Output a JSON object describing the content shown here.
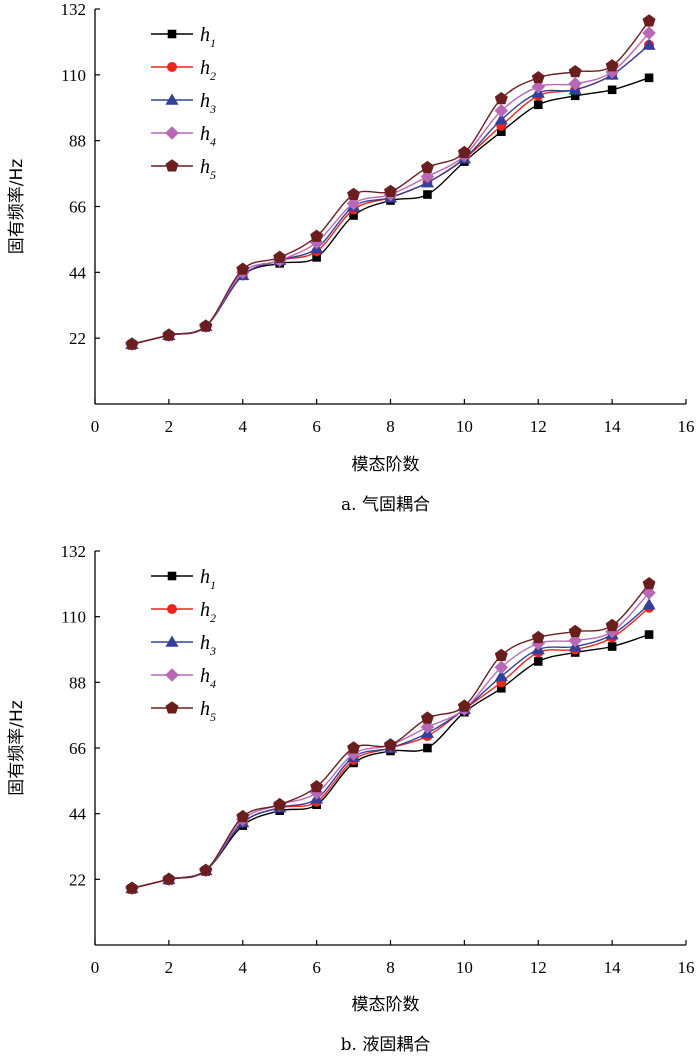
{
  "chart_data": [
    {
      "type": "line",
      "title": "a. 气固耦合",
      "xlabel": "模态阶数",
      "ylabel": "固有频率/Hz",
      "xlim": [
        0,
        16
      ],
      "ylim": [
        0,
        132
      ],
      "xticks": [
        0,
        2,
        4,
        6,
        8,
        10,
        12,
        14,
        16
      ],
      "xtick_labels": [
        "0",
        "2",
        "4",
        "6",
        "8",
        "10",
        "12",
        "14",
        "16"
      ],
      "yticks": [
        22,
        44,
        66,
        88,
        110,
        132
      ],
      "ytick_labels": [
        "22",
        "44",
        "66",
        "88",
        "110",
        "132"
      ],
      "legend_position": "top-left",
      "x": [
        1,
        2,
        3,
        4,
        5,
        6,
        7,
        8,
        9,
        10,
        11,
        12,
        13,
        14,
        15
      ],
      "series": [
        {
          "name": "h",
          "subscript": "1",
          "marker": "square",
          "color": "#000000",
          "values": [
            20,
            23,
            26,
            43,
            47,
            49,
            63,
            68,
            70,
            81,
            91,
            100,
            103,
            105,
            109
          ]
        },
        {
          "name": "h",
          "subscript": "2",
          "marker": "circle",
          "color": "#e8261d",
          "values": [
            20,
            23,
            26,
            43,
            48,
            51,
            65,
            69,
            74,
            82,
            93,
            103,
            105,
            110,
            120
          ]
        },
        {
          "name": "h",
          "subscript": "3",
          "marker": "triangle",
          "color": "#32409a",
          "values": [
            20,
            23,
            26,
            43,
            48,
            52,
            66,
            69,
            74,
            82,
            95,
            104,
            105,
            110,
            120
          ]
        },
        {
          "name": "h",
          "subscript": "4",
          "marker": "diamond",
          "color": "#b769b6",
          "values": [
            20,
            23,
            26,
            44,
            48,
            54,
            67,
            70,
            76,
            83,
            98,
            106,
            107,
            111,
            124
          ]
        },
        {
          "name": "h",
          "subscript": "5",
          "marker": "pentagon",
          "color": "#6b1e1e",
          "values": [
            20,
            23,
            26,
            45,
            49,
            56,
            70,
            71,
            79,
            84,
            102,
            109,
            111,
            113,
            128
          ]
        }
      ]
    },
    {
      "type": "line",
      "title": "b. 液固耦合",
      "xlabel": "模态阶数",
      "ylabel": "固有频率/Hz",
      "xlim": [
        0,
        16
      ],
      "ylim": [
        0,
        132
      ],
      "xticks": [
        0,
        2,
        4,
        6,
        8,
        10,
        12,
        14,
        16
      ],
      "xtick_labels": [
        "0",
        "2",
        "4",
        "6",
        "8",
        "10",
        "12",
        "14",
        "16"
      ],
      "yticks": [
        22,
        44,
        66,
        88,
        110,
        132
      ],
      "ytick_labels": [
        "22",
        "44",
        "66",
        "88",
        "110",
        "132"
      ],
      "legend_position": "top-left",
      "x": [
        1,
        2,
        3,
        4,
        5,
        6,
        7,
        8,
        9,
        10,
        11,
        12,
        13,
        14,
        15
      ],
      "series": [
        {
          "name": "h",
          "subscript": "1",
          "marker": "square",
          "color": "#000000",
          "values": [
            19,
            22,
            25,
            40,
            45,
            47,
            61,
            65,
            66,
            78,
            86,
            95,
            98,
            100,
            104
          ]
        },
        {
          "name": "h",
          "subscript": "2",
          "marker": "circle",
          "color": "#e8261d",
          "values": [
            19,
            22,
            25,
            41,
            46,
            48,
            62,
            66,
            70,
            79,
            88,
            98,
            99,
            103,
            113
          ]
        },
        {
          "name": "h",
          "subscript": "3",
          "marker": "triangle",
          "color": "#32409a",
          "values": [
            19,
            22,
            25,
            41,
            46,
            49,
            63,
            66,
            71,
            79,
            90,
            99,
            100,
            104,
            114
          ]
        },
        {
          "name": "h",
          "subscript": "4",
          "marker": "diamond",
          "color": "#b769b6",
          "values": [
            19,
            22,
            25,
            42,
            47,
            51,
            64,
            67,
            73,
            79,
            93,
            101,
            102,
            105,
            118
          ]
        },
        {
          "name": "h",
          "subscript": "5",
          "marker": "pentagon",
          "color": "#6b1e1e",
          "values": [
            19,
            22,
            25,
            43,
            47,
            53,
            66,
            67,
            76,
            80,
            97,
            103,
            105,
            107,
            121
          ]
        }
      ]
    }
  ]
}
